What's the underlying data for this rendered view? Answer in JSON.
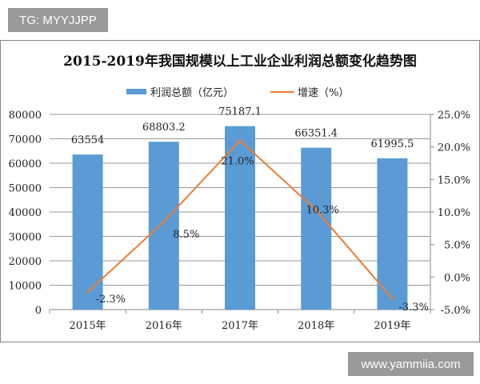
{
  "overlays": {
    "top_left": "TG: MYYJJPP",
    "bottom_right": "www.yammiia.com"
  },
  "chart_data": {
    "type": "bar+line",
    "title": "2015-2019年我国规模以上工业企业利润总额变化趋势图",
    "categories": [
      "2015年",
      "2016年",
      "2017年",
      "2018年",
      "2019年"
    ],
    "series": [
      {
        "name": "利润总额（亿元）",
        "type": "bar",
        "axis": "left",
        "color": "#5b9bd5",
        "values": [
          63554,
          68803.2,
          75187.1,
          66351.4,
          61995.5
        ],
        "labels": [
          "63554",
          "68803.2",
          "75187.1",
          "66351.4",
          "61995.5"
        ]
      },
      {
        "name": "增速（%）",
        "type": "line",
        "axis": "right",
        "color": "#ed7d31",
        "values": [
          -2.3,
          8.5,
          21.0,
          10.3,
          -3.3
        ],
        "labels": [
          "-2.3%",
          "8.5%",
          "21.0%",
          "10.3%",
          "-3.3%"
        ]
      }
    ],
    "left_axis": {
      "ylim": [
        0,
        80000
      ],
      "ticks": [
        "0",
        "10000",
        "20000",
        "30000",
        "40000",
        "50000",
        "60000",
        "70000",
        "80000"
      ]
    },
    "right_axis": {
      "ylim": [
        -5,
        25
      ],
      "ticks": [
        "-5.0%",
        "0.0%",
        "5.0%",
        "10.0%",
        "15.0%",
        "20.0%",
        "25.0%"
      ]
    },
    "grid": true,
    "legend": "top"
  }
}
